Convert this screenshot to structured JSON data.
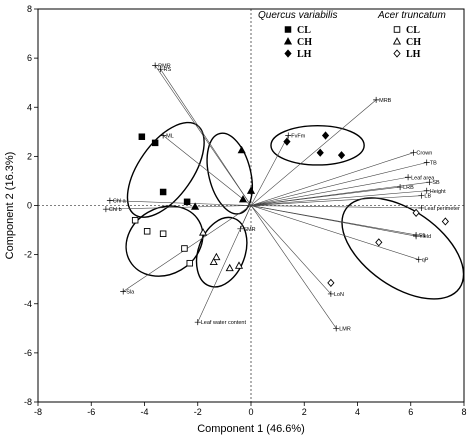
{
  "chart_data": {
    "type": "scatter",
    "xlabel": "Component 1 (46.6%)",
    "ylabel": "Component 2 (16.3%)",
    "xlim": [
      -8,
      8
    ],
    "ylim": [
      -8,
      8
    ],
    "xticks": [
      "-8",
      "-6",
      "-4",
      "-2",
      "0",
      "2",
      "4",
      "6",
      "8"
    ],
    "yticks": [
      "8",
      "6",
      "4",
      "2",
      "0",
      "-2",
      "-4",
      "-6",
      "-8"
    ],
    "grid": false,
    "reference_lines": "dotted at x=0 and y=0",
    "legend": {
      "placement": "top-right",
      "species": [
        "Quercus variabilis",
        "Acer truncatum"
      ],
      "treatments": [
        "CL",
        "CH",
        "LH"
      ]
    },
    "series": [
      {
        "species": "Quercus variabilis",
        "treatment": "CL",
        "marker": "square-filled",
        "points": [
          [
            -4.1,
            2.8
          ],
          [
            -3.6,
            2.55
          ],
          [
            -3.3,
            0.55
          ],
          [
            -2.4,
            0.15
          ]
        ]
      },
      {
        "species": "Quercus variabilis",
        "treatment": "CH",
        "marker": "triangle-filled",
        "points": [
          [
            -0.35,
            2.25
          ],
          [
            0,
            0.6
          ],
          [
            -0.3,
            0.25
          ],
          [
            -2.1,
            -0.05
          ]
        ]
      },
      {
        "species": "Quercus variabilis",
        "treatment": "LH",
        "marker": "diamond-filled",
        "points": [
          [
            1.35,
            2.6
          ],
          [
            2.8,
            2.85
          ],
          [
            2.6,
            2.15
          ],
          [
            3.4,
            2.05
          ]
        ]
      },
      {
        "species": "Acer truncatum",
        "treatment": "CL",
        "marker": "square-open",
        "points": [
          [
            -4.35,
            -0.6
          ],
          [
            -3.9,
            -1.05
          ],
          [
            -3.3,
            -1.15
          ],
          [
            -2.5,
            -1.75
          ],
          [
            -2.3,
            -2.35
          ]
        ]
      },
      {
        "species": "Acer truncatum",
        "treatment": "CH",
        "marker": "triangle-open",
        "points": [
          [
            -1.8,
            -1.1
          ],
          [
            -1.3,
            -2.1
          ],
          [
            -1.4,
            -2.3
          ],
          [
            -0.8,
            -2.55
          ],
          [
            -0.45,
            -2.45
          ]
        ]
      },
      {
        "species": "Acer truncatum",
        "treatment": "LH",
        "marker": "diamond-open",
        "points": [
          [
            7.3,
            -0.65
          ],
          [
            6.2,
            -0.3
          ],
          [
            4.8,
            -1.5
          ],
          [
            3,
            -3.15
          ]
        ]
      }
    ],
    "ellipses": [
      {
        "cx": -3.2,
        "cy": 1.45,
        "rx": 2.05,
        "ry": 1.1,
        "angle": -55
      },
      {
        "cx": -0.8,
        "cy": 1.3,
        "rx": 1.55,
        "ry": 0.85,
        "angle": 76
      },
      {
        "cx": 2.5,
        "cy": 2.45,
        "rx": 1.75,
        "ry": 0.8,
        "angle": 0
      },
      {
        "cx": -3.25,
        "cy": -1.45,
        "rx": 1.5,
        "ry": 1.35,
        "angle": -30
      },
      {
        "cx": -1.1,
        "cy": -1.9,
        "rx": 1.35,
        "ry": 0.95,
        "angle": -70
      },
      {
        "cx": 5.7,
        "cy": -1.75,
        "rx": 2.6,
        "ry": 1.55,
        "angle": 35
      }
    ],
    "loadings": [
      {
        "label": "RMR",
        "x": -3.6,
        "y": 5.7
      },
      {
        "label": "RS",
        "x": -3.4,
        "y": 5.55
      },
      {
        "label": "ML",
        "x": -3.3,
        "y": 2.85
      },
      {
        "label": "MRB",
        "x": 4.7,
        "y": 4.3
      },
      {
        "label": "FvFm",
        "x": 1.4,
        "y": 2.85
      },
      {
        "label": "Crown",
        "x": 6.1,
        "y": 2.15
      },
      {
        "label": "TB",
        "x": 6.6,
        "y": 1.75
      },
      {
        "label": "Leaf area",
        "x": 5.9,
        "y": 1.15
      },
      {
        "label": "LRB",
        "x": 5.6,
        "y": 0.75
      },
      {
        "label": "SB",
        "x": 6.7,
        "y": 0.95
      },
      {
        "label": "Height",
        "x": 6.6,
        "y": 0.6
      },
      {
        "label": "LB",
        "x": 6.4,
        "y": 0.4
      },
      {
        "label": "Leaf perimeter",
        "x": 6.4,
        "y": -0.1
      },
      {
        "label": "Elt",
        "x": 6.2,
        "y": -1.2
      },
      {
        "label": "Yield",
        "x": 6.2,
        "y": -1.25
      },
      {
        "label": "qP",
        "x": 6.3,
        "y": -2.2
      },
      {
        "label": "Chl a",
        "x": -5.3,
        "y": 0.2
      },
      {
        "label": "Chl b",
        "x": -5.45,
        "y": -0.15
      },
      {
        "label": "SMR",
        "x": -0.4,
        "y": -0.95
      },
      {
        "label": "Sla",
        "x": -4.8,
        "y": -3.5
      },
      {
        "label": "Leaf water content",
        "x": -2.0,
        "y": -4.75
      },
      {
        "label": "LoN",
        "x": 3.0,
        "y": -3.6
      },
      {
        "label": "LMR",
        "x": 3.2,
        "y": -5.0
      }
    ]
  }
}
